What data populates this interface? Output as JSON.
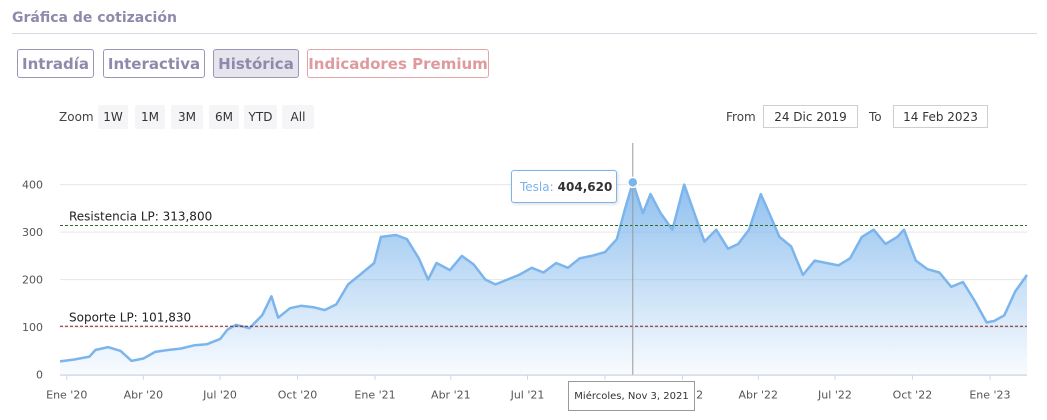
{
  "header": {
    "title": "Gráfica de cotización"
  },
  "tabs": [
    {
      "label": "Intradía",
      "active": false
    },
    {
      "label": "Interactiva",
      "active": false
    },
    {
      "label": "Histórica",
      "active": true
    },
    {
      "label": "Indicadores Premium",
      "active": false
    }
  ],
  "zoom": {
    "label": "Zoom",
    "buttons": [
      "1W",
      "1M",
      "3M",
      "6M",
      "YTD",
      "All"
    ]
  },
  "range": {
    "from_label": "From",
    "from_value": "24 Dic 2019",
    "to_label": "To",
    "to_value": "14 Feb 2023"
  },
  "tooltip": {
    "series": "Tesla:",
    "value": "404,620"
  },
  "crosshair_label": "Miércoles, Nov 3, 2021",
  "chart_data": {
    "type": "area",
    "series": [
      {
        "name": "Tesla",
        "color": "#7cb5ec"
      }
    ],
    "x_start": "2019-12-24",
    "x_end": "2023-02-14",
    "x_ticks": [
      {
        "date": "2020-01-01",
        "label": "Ene '20"
      },
      {
        "date": "2020-04-01",
        "label": "Abr '20"
      },
      {
        "date": "2020-07-01",
        "label": "Jul '20"
      },
      {
        "date": "2020-10-01",
        "label": "Oct '20"
      },
      {
        "date": "2021-01-01",
        "label": "Ene '21"
      },
      {
        "date": "2021-04-01",
        "label": "Abr '21"
      },
      {
        "date": "2021-07-01",
        "label": "Jul '21"
      },
      {
        "date": "2021-10-01",
        "label": "Oct '21"
      },
      {
        "date": "2022-01-01",
        "label": "Ene '22"
      },
      {
        "date": "2022-04-01",
        "label": "Abr '22"
      },
      {
        "date": "2022-07-01",
        "label": "Jul '22"
      },
      {
        "date": "2022-10-01",
        "label": "Oct '22"
      },
      {
        "date": "2023-01-01",
        "label": "Ene '23"
      }
    ],
    "y_ticks": [
      0,
      100,
      200,
      300,
      400
    ],
    "ylim": [
      0,
      450
    ],
    "grid": true,
    "points": [
      [
        "2019-12-24",
        28
      ],
      [
        "2020-01-10",
        32
      ],
      [
        "2020-01-28",
        38
      ],
      [
        "2020-02-04",
        52
      ],
      [
        "2020-02-19",
        58
      ],
      [
        "2020-03-05",
        50
      ],
      [
        "2020-03-18",
        29
      ],
      [
        "2020-04-01",
        34
      ],
      [
        "2020-04-15",
        48
      ],
      [
        "2020-04-30",
        52
      ],
      [
        "2020-05-15",
        55
      ],
      [
        "2020-06-01",
        62
      ],
      [
        "2020-06-15",
        64
      ],
      [
        "2020-07-01",
        75
      ],
      [
        "2020-07-10",
        95
      ],
      [
        "2020-07-20",
        105
      ],
      [
        "2020-08-05",
        98
      ],
      [
        "2020-08-20",
        125
      ],
      [
        "2020-08-31",
        165
      ],
      [
        "2020-09-08",
        120
      ],
      [
        "2020-09-22",
        140
      ],
      [
        "2020-10-05",
        145
      ],
      [
        "2020-10-20",
        142
      ],
      [
        "2020-11-02",
        136
      ],
      [
        "2020-11-16",
        148
      ],
      [
        "2020-11-30",
        190
      ],
      [
        "2020-12-14",
        210
      ],
      [
        "2020-12-31",
        235
      ],
      [
        "2021-01-08",
        290
      ],
      [
        "2021-01-26",
        294
      ],
      [
        "2021-02-08",
        285
      ],
      [
        "2021-02-22",
        245
      ],
      [
        "2021-03-05",
        200
      ],
      [
        "2021-03-15",
        235
      ],
      [
        "2021-03-31",
        220
      ],
      [
        "2021-04-14",
        250
      ],
      [
        "2021-04-28",
        232
      ],
      [
        "2021-05-12",
        200
      ],
      [
        "2021-05-24",
        190
      ],
      [
        "2021-06-07",
        200
      ],
      [
        "2021-06-21",
        210
      ],
      [
        "2021-07-06",
        225
      ],
      [
        "2021-07-20",
        215
      ],
      [
        "2021-08-04",
        235
      ],
      [
        "2021-08-18",
        225
      ],
      [
        "2021-09-01",
        245
      ],
      [
        "2021-09-15",
        250
      ],
      [
        "2021-10-01",
        258
      ],
      [
        "2021-10-15",
        285
      ],
      [
        "2021-10-25",
        350
      ],
      [
        "2021-11-03",
        404.62
      ],
      [
        "2021-11-15",
        340
      ],
      [
        "2021-11-24",
        380
      ],
      [
        "2021-12-06",
        340
      ],
      [
        "2021-12-20",
        305
      ],
      [
        "2022-01-03",
        400
      ],
      [
        "2022-01-12",
        355
      ],
      [
        "2022-01-27",
        280
      ],
      [
        "2022-02-10",
        305
      ],
      [
        "2022-02-24",
        265
      ],
      [
        "2022-03-08",
        275
      ],
      [
        "2022-03-21",
        305
      ],
      [
        "2022-04-04",
        380
      ],
      [
        "2022-04-14",
        340
      ],
      [
        "2022-04-26",
        290
      ],
      [
        "2022-05-10",
        270
      ],
      [
        "2022-05-24",
        210
      ],
      [
        "2022-06-07",
        240
      ],
      [
        "2022-06-21",
        235
      ],
      [
        "2022-07-05",
        230
      ],
      [
        "2022-07-19",
        245
      ],
      [
        "2022-08-02",
        290
      ],
      [
        "2022-08-16",
        305
      ],
      [
        "2022-08-30",
        275
      ],
      [
        "2022-09-13",
        290
      ],
      [
        "2022-09-21",
        305
      ],
      [
        "2022-10-05",
        240
      ],
      [
        "2022-10-19",
        222
      ],
      [
        "2022-11-02",
        215
      ],
      [
        "2022-11-16",
        185
      ],
      [
        "2022-11-30",
        195
      ],
      [
        "2022-12-14",
        155
      ],
      [
        "2022-12-28",
        110
      ],
      [
        "2023-01-06",
        113
      ],
      [
        "2023-01-18",
        125
      ],
      [
        "2023-01-31",
        175
      ],
      [
        "2023-02-14",
        210
      ]
    ],
    "annotations": [
      {
        "label": "Resistencia LP: 313,800",
        "value": 313.8,
        "color": "#2e6b2e"
      },
      {
        "label": "Soporte LP: 101,830",
        "value": 101.83,
        "color": "#8b1a1a"
      }
    ],
    "crosshair": {
      "date": "2021-11-03",
      "value": 404.62
    }
  }
}
